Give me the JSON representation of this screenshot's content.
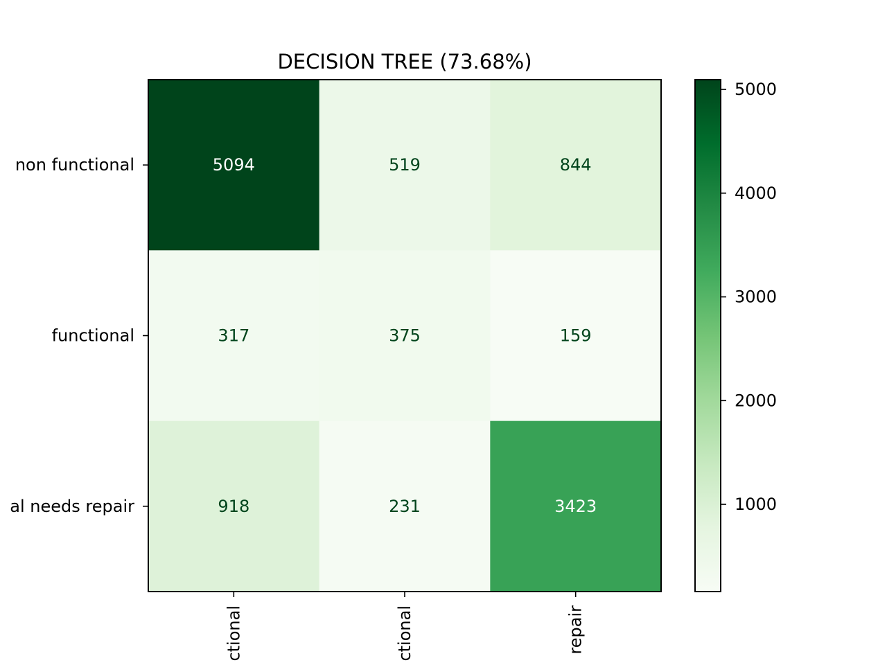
{
  "chart_data": {
    "type": "heatmap",
    "title": "DECISION TREE (73.68%)",
    "xlabel": "",
    "ylabel": "",
    "row_labels": [
      "non functional",
      "functional",
      "functional needs repair"
    ],
    "row_labels_visible": [
      "non functional",
      "functional",
      "al needs repair"
    ],
    "col_labels": [
      "non functional",
      "functional",
      "functional needs repair"
    ],
    "col_labels_visible": [
      "ctional",
      "ctional",
      "repair"
    ],
    "values": [
      [
        5094,
        519,
        844
      ],
      [
        317,
        375,
        159
      ],
      [
        918,
        231,
        3423
      ]
    ],
    "colormap": "Greens",
    "colorbar": {
      "range": [
        159,
        5094
      ],
      "ticks": [
        1000,
        2000,
        3000,
        4000,
        5000
      ],
      "tick_labels": [
        "1000",
        "2000",
        "3000",
        "4000",
        "5000"
      ]
    },
    "text_color_light": "#ffffff",
    "text_color_dark": "#00441b",
    "grid": false
  }
}
